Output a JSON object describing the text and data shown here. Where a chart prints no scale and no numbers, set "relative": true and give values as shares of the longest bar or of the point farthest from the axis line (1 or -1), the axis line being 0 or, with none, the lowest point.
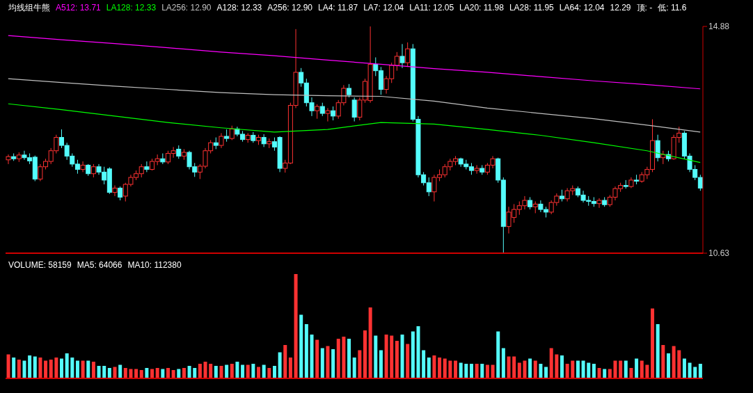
{
  "chart_data": [
    {
      "type": "candlestick",
      "title": "均线组牛熊",
      "legend": "top left",
      "tick_labels": false,
      "annotations": [
        "A128: 12.33",
        "A256: 12.90",
        "LA4: 11.87",
        "LA7: 12.04",
        "LA11: 12.05",
        "LA20: 11.98",
        "LA28: 11.95",
        "LA64: 12.04",
        "12.29",
        "顶: -",
        "低: 11.6"
      ],
      "ylim": [
        10.63,
        14.88
      ],
      "yticks": [
        {
          "value": 14.88,
          "label": "14.88"
        },
        {
          "value": 10.63,
          "label": "10.63"
        }
      ],
      "categories": [
        null,
        null,
        null,
        null,
        null,
        null,
        null,
        null,
        null,
        null,
        null,
        null,
        null,
        null,
        null,
        null,
        null,
        null,
        null,
        null,
        null,
        null,
        null,
        null,
        null,
        null,
        null,
        null,
        null,
        null,
        null,
        null,
        null,
        null,
        null,
        null,
        null,
        null,
        null,
        null,
        null,
        null,
        null,
        null,
        null,
        null,
        null,
        null,
        null,
        null,
        null,
        null,
        null,
        null,
        null,
        null,
        null,
        null,
        null,
        null,
        null,
        null,
        null,
        null,
        null,
        null,
        null,
        null,
        null,
        null,
        null,
        null,
        null,
        null,
        null,
        null,
        null,
        null,
        null,
        null,
        null,
        null,
        null,
        null,
        null,
        null,
        null,
        null,
        null,
        null,
        null,
        null,
        null,
        null,
        null,
        null,
        null,
        null,
        null,
        null,
        null,
        null,
        null,
        null,
        null,
        null,
        null,
        null,
        null,
        null,
        null,
        null,
        null,
        null,
        null,
        null,
        null,
        null,
        null,
        null,
        null,
        null,
        null,
        null,
        null,
        null,
        null,
        null,
        null,
        null,
        null
      ],
      "ohlc": [
        [
          12.38,
          12.48,
          12.3,
          12.44
        ],
        [
          12.44,
          12.5,
          12.36,
          12.4
        ],
        [
          12.4,
          12.52,
          12.34,
          12.47
        ],
        [
          12.47,
          12.55,
          12.38,
          12.42
        ],
        [
          12.42,
          12.5,
          12.3,
          12.36
        ],
        [
          12.43,
          12.46,
          11.98,
          12.02
        ],
        [
          12.02,
          12.3,
          11.98,
          12.25
        ],
        [
          12.25,
          12.4,
          12.2,
          12.35
        ],
        [
          12.35,
          12.6,
          12.3,
          12.55
        ],
        [
          12.55,
          12.85,
          12.5,
          12.8
        ],
        [
          12.8,
          12.95,
          12.6,
          12.65
        ],
        [
          12.65,
          12.7,
          12.38,
          12.45
        ],
        [
          12.45,
          12.5,
          12.25,
          12.3
        ],
        [
          12.3,
          12.38,
          12.12,
          12.2
        ],
        [
          12.2,
          12.35,
          12.15,
          12.28
        ],
        [
          12.28,
          12.3,
          12.08,
          12.12
        ],
        [
          12.12,
          12.3,
          12.05,
          12.25
        ],
        [
          12.25,
          12.3,
          12.1,
          12.15
        ],
        [
          12.15,
          12.25,
          11.92,
          12.0
        ],
        [
          12.21,
          12.24,
          11.74,
          11.77
        ],
        [
          11.77,
          11.9,
          11.7,
          11.85
        ],
        [
          11.85,
          11.88,
          11.62,
          11.68
        ],
        [
          11.7,
          11.95,
          11.6,
          11.92
        ],
        [
          11.92,
          12.1,
          11.88,
          12.05
        ],
        [
          12.05,
          12.18,
          12.0,
          12.12
        ],
        [
          12.12,
          12.3,
          12.05,
          12.25
        ],
        [
          12.25,
          12.35,
          12.15,
          12.2
        ],
        [
          12.2,
          12.4,
          12.18,
          12.35
        ],
        [
          12.35,
          12.48,
          12.28,
          12.4
        ],
        [
          12.4,
          12.5,
          12.3,
          12.34
        ],
        [
          12.34,
          12.55,
          12.3,
          12.5
        ],
        [
          12.5,
          12.62,
          12.42,
          12.55
        ],
        [
          12.58,
          12.65,
          12.4,
          12.45
        ],
        [
          12.45,
          12.58,
          12.38,
          12.52
        ],
        [
          12.52,
          12.55,
          12.2,
          12.25
        ],
        [
          12.25,
          12.32,
          12.06,
          12.15
        ],
        [
          12.15,
          12.3,
          12.02,
          12.26
        ],
        [
          12.26,
          12.6,
          12.22,
          12.55
        ],
        [
          12.55,
          12.75,
          12.5,
          12.7
        ],
        [
          12.7,
          12.8,
          12.58,
          12.65
        ],
        [
          12.65,
          12.88,
          12.6,
          12.82
        ],
        [
          12.82,
          12.95,
          12.72,
          12.78
        ],
        [
          12.78,
          13.02,
          12.75,
          12.96
        ],
        [
          12.96,
          13.0,
          12.82,
          12.86
        ],
        [
          12.86,
          12.92,
          12.72,
          12.76
        ],
        [
          12.76,
          12.88,
          12.7,
          12.84
        ],
        [
          12.84,
          12.9,
          12.7,
          12.74
        ],
        [
          12.74,
          12.85,
          12.66,
          12.8
        ],
        [
          12.8,
          12.86,
          12.62,
          12.68
        ],
        [
          12.68,
          12.78,
          12.6,
          12.72
        ],
        [
          12.72,
          12.8,
          12.55,
          12.62
        ],
        [
          12.8,
          12.82,
          12.15,
          12.22
        ],
        [
          12.22,
          12.38,
          12.14,
          12.32
        ],
        [
          12.32,
          13.45,
          12.3,
          13.4
        ],
        [
          13.4,
          14.83,
          13.35,
          14.02
        ],
        [
          14.02,
          14.1,
          13.75,
          13.82
        ],
        [
          13.82,
          13.9,
          13.38,
          13.45
        ],
        [
          13.45,
          13.55,
          13.2,
          13.3
        ],
        [
          13.3,
          13.42,
          13.15,
          13.38
        ],
        [
          13.38,
          13.45,
          13.2,
          13.25
        ],
        [
          13.25,
          13.35,
          13.1,
          13.3
        ],
        [
          13.3,
          13.38,
          13.12,
          13.2
        ],
        [
          13.2,
          13.5,
          13.15,
          13.45
        ],
        [
          13.45,
          13.78,
          13.4,
          13.72
        ],
        [
          13.72,
          13.8,
          13.55,
          13.6
        ],
        [
          13.5,
          13.55,
          13.1,
          13.18
        ],
        [
          13.18,
          13.55,
          13.12,
          13.5
        ],
        [
          13.5,
          13.9,
          13.45,
          13.85
        ],
        [
          13.49,
          14.88,
          13.45,
          14.17
        ],
        [
          14.17,
          14.3,
          13.95,
          14.05
        ],
        [
          14.05,
          14.12,
          13.6,
          13.7
        ],
        [
          13.7,
          13.95,
          13.62,
          13.9
        ],
        [
          13.9,
          14.2,
          13.82,
          14.15
        ],
        [
          14.15,
          14.4,
          14.05,
          14.32
        ],
        [
          14.32,
          14.55,
          14.1,
          14.2
        ],
        [
          14.2,
          14.58,
          14.12,
          14.46
        ],
        [
          14.46,
          14.55,
          13.1,
          13.14
        ],
        [
          13.14,
          13.2,
          12.05,
          12.1
        ],
        [
          12.1,
          12.15,
          11.9,
          11.95
        ],
        [
          11.95,
          12.05,
          11.7,
          11.78
        ],
        [
          11.78,
          12.1,
          11.6,
          12.05
        ],
        [
          12.05,
          12.2,
          11.98,
          12.1
        ],
        [
          12.1,
          12.3,
          12.05,
          12.25
        ],
        [
          12.25,
          12.4,
          12.18,
          12.35
        ],
        [
          12.35,
          12.45,
          12.28,
          12.4
        ],
        [
          12.4,
          12.42,
          12.25,
          12.3
        ],
        [
          12.3,
          12.38,
          12.2,
          12.25
        ],
        [
          12.25,
          12.32,
          12.1,
          12.18
        ],
        [
          12.18,
          12.28,
          12.12,
          12.22
        ],
        [
          12.22,
          12.28,
          12.1,
          12.15
        ],
        [
          12.15,
          12.32,
          12.1,
          12.28
        ],
        [
          12.28,
          12.45,
          12.22,
          12.4
        ],
        [
          12.4,
          12.42,
          11.95,
          12.0
        ],
        [
          12.0,
          12.05,
          10.63,
          11.13
        ],
        [
          11.13,
          11.5,
          11.0,
          11.4
        ],
        [
          11.3,
          11.55,
          11.2,
          11.45
        ],
        [
          11.45,
          11.6,
          11.35,
          11.52
        ],
        [
          11.52,
          11.7,
          11.45,
          11.62
        ],
        [
          11.62,
          11.68,
          11.45,
          11.5
        ],
        [
          11.5,
          11.6,
          11.38,
          11.55
        ],
        [
          11.55,
          11.62,
          11.4,
          11.45
        ],
        [
          11.45,
          11.5,
          11.3,
          11.4
        ],
        [
          11.4,
          11.62,
          11.36,
          11.58
        ],
        [
          11.58,
          11.75,
          11.52,
          11.7
        ],
        [
          11.7,
          11.82,
          11.6,
          11.65
        ],
        [
          11.65,
          11.85,
          11.6,
          11.8
        ],
        [
          11.8,
          11.9,
          11.72,
          11.84
        ],
        [
          11.84,
          11.88,
          11.68,
          11.72
        ],
        [
          11.72,
          11.8,
          11.58,
          11.62
        ],
        [
          11.62,
          11.7,
          11.52,
          11.6
        ],
        [
          11.6,
          11.68,
          11.5,
          11.56
        ],
        [
          11.56,
          11.66,
          11.48,
          11.62
        ],
        [
          11.62,
          11.68,
          11.5,
          11.54
        ],
        [
          11.54,
          11.72,
          11.5,
          11.68
        ],
        [
          11.68,
          11.88,
          11.62,
          11.84
        ],
        [
          11.84,
          11.95,
          11.78,
          11.9
        ],
        [
          11.9,
          12.0,
          11.84,
          11.88
        ],
        [
          11.88,
          12.05,
          11.85,
          12.0
        ],
        [
          12.0,
          12.1,
          11.92,
          11.98
        ],
        [
          11.98,
          12.15,
          11.95,
          12.1
        ],
        [
          12.1,
          12.25,
          12.02,
          12.2
        ],
        [
          12.2,
          13.14,
          12.15,
          12.74
        ],
        [
          12.74,
          12.85,
          12.35,
          12.42
        ],
        [
          12.42,
          12.55,
          12.3,
          12.48
        ],
        [
          12.48,
          12.55,
          12.35,
          12.4
        ],
        [
          12.4,
          12.85,
          12.38,
          12.8
        ],
        [
          12.8,
          13.0,
          12.7,
          12.88
        ],
        [
          12.88,
          12.92,
          12.4,
          12.45
        ],
        [
          12.45,
          12.5,
          12.15,
          12.2
        ],
        [
          12.2,
          12.28,
          12.0,
          12.05
        ],
        [
          12.05,
          12.1,
          11.8,
          11.85
        ]
      ],
      "colors": [
        "#ff3232",
        "#54fcfc",
        "#ff3232",
        "#54fcfc",
        "#54fcfc",
        "#54fcfc",
        "#ff3232",
        "#ff3232",
        "#ff3232",
        "#ff3232",
        "#54fcfc",
        "#54fcfc",
        "#54fcfc",
        "#54fcfc",
        "#ff3232",
        "#54fcfc",
        "#ff3232",
        "#54fcfc",
        "#54fcfc",
        "#54fcfc",
        "#ff3232",
        "#54fcfc",
        "#ff3232",
        "#ff3232",
        "#ff3232",
        "#ff3232",
        "#54fcfc",
        "#ff3232",
        "#ff3232",
        "#54fcfc",
        "#ff3232",
        "#ff3232",
        "#54fcfc",
        "#ff3232",
        "#54fcfc",
        "#54fcfc",
        "#ff3232",
        "#ff3232",
        "#ff3232",
        "#54fcfc",
        "#ff3232",
        "#54fcfc",
        "#ff3232",
        "#54fcfc",
        "#54fcfc",
        "#ff3232",
        "#54fcfc",
        "#ff3232",
        "#54fcfc",
        "#ff3232",
        "#54fcfc",
        "#54fcfc",
        "#ff3232",
        "#ff3232",
        "#ff3232",
        "#54fcfc",
        "#54fcfc",
        "#54fcfc",
        "#ff3232",
        "#54fcfc",
        "#ff3232",
        "#54fcfc",
        "#ff3232",
        "#ff3232",
        "#54fcfc",
        "#54fcfc",
        "#ff3232",
        "#ff3232",
        "#ff3232",
        "#54fcfc",
        "#54fcfc",
        "#ff3232",
        "#ff3232",
        "#ff3232",
        "#54fcfc",
        "#ff3232",
        "#54fcfc",
        "#54fcfc",
        "#54fcfc",
        "#54fcfc",
        "#ff3232",
        "#ff3232",
        "#ff3232",
        "#ff3232",
        "#ff3232",
        "#54fcfc",
        "#54fcfc",
        "#54fcfc",
        "#ff3232",
        "#54fcfc",
        "#ff3232",
        "#ff3232",
        "#54fcfc",
        "#54fcfc",
        "#ff3232",
        "#ff3232",
        "#ff3232",
        "#ff3232",
        "#54fcfc",
        "#ff3232",
        "#54fcfc",
        "#54fcfc",
        "#ff3232",
        "#ff3232",
        "#54fcfc",
        "#ff3232",
        "#ff3232",
        "#54fcfc",
        "#54fcfc",
        "#54fcfc",
        "#54fcfc",
        "#ff3232",
        "#54fcfc",
        "#ff3232",
        "#ff3232",
        "#ff3232",
        "#54fcfc",
        "#ff3232",
        "#54fcfc",
        "#ff3232",
        "#ff3232",
        "#ff3232",
        "#54fcfc",
        "#ff3232",
        "#54fcfc",
        "#ff3232",
        "#ff3232",
        "#54fcfc",
        "#54fcfc",
        "#54fcfc",
        "#54fcfc"
      ],
      "series": [
        {
          "type": "line",
          "name": "A512: 13.71",
          "color": "#ff00ff",
          "values": [
            14.71,
            null,
            null,
            null,
            null,
            null,
            null,
            null,
            null,
            null,
            14.63,
            null,
            null,
            null,
            null,
            null,
            null,
            null,
            null,
            null,
            14.56,
            null,
            null,
            null,
            null,
            null,
            null,
            null,
            null,
            null,
            14.48,
            null,
            null,
            null,
            null,
            null,
            null,
            null,
            null,
            null,
            14.4,
            null,
            null,
            null,
            null,
            null,
            null,
            null,
            null,
            null,
            14.33,
            null,
            null,
            null,
            null,
            null,
            null,
            null,
            null,
            null,
            14.25,
            null,
            null,
            null,
            null,
            null,
            null,
            null,
            null,
            null,
            14.17,
            null,
            null,
            null,
            null,
            null,
            null,
            null,
            null,
            null,
            14.09,
            null,
            null,
            null,
            null,
            null,
            null,
            null,
            null,
            null,
            14.02,
            null,
            null,
            null,
            null,
            null,
            null,
            null,
            null,
            null,
            13.94,
            null,
            null,
            null,
            null,
            null,
            null,
            null,
            null,
            null,
            13.86,
            null,
            null,
            null,
            null,
            null,
            null,
            null,
            null,
            null,
            13.79,
            null,
            null,
            null,
            null,
            null,
            null,
            null,
            null,
            null,
            13.71
          ]
        },
        {
          "type": "line",
          "name": "LA128: 12.33",
          "color": "#00ff00",
          "values": [
            13.43,
            null,
            null,
            null,
            null,
            null,
            null,
            null,
            null,
            null,
            13.32,
            null,
            null,
            null,
            null,
            null,
            null,
            null,
            null,
            null,
            13.2,
            null,
            null,
            null,
            null,
            null,
            null,
            null,
            null,
            null,
            13.08,
            null,
            null,
            null,
            null,
            null,
            null,
            null,
            null,
            null,
            12.98,
            null,
            null,
            null,
            null,
            null,
            null,
            null,
            null,
            null,
            12.9,
            null,
            null,
            null,
            null,
            null,
            null,
            null,
            null,
            null,
            12.95,
            null,
            null,
            null,
            null,
            null,
            null,
            null,
            null,
            null,
            13.08,
            null,
            null,
            null,
            null,
            null,
            null,
            null,
            null,
            null,
            13.05,
            null,
            null,
            null,
            null,
            null,
            null,
            null,
            null,
            null,
            12.95,
            null,
            null,
            null,
            null,
            null,
            null,
            null,
            null,
            null,
            12.84,
            null,
            null,
            null,
            null,
            null,
            null,
            null,
            null,
            null,
            12.7,
            null,
            null,
            null,
            null,
            null,
            null,
            null,
            null,
            null,
            12.55,
            null,
            null,
            null,
            null,
            null,
            null,
            null,
            null,
            null,
            12.33
          ]
        },
        {
          "type": "line",
          "name": "LA256: 12.90",
          "color": "#c0c0c0",
          "values": [
            13.9,
            null,
            null,
            null,
            null,
            null,
            null,
            null,
            null,
            null,
            13.83,
            null,
            null,
            null,
            null,
            null,
            null,
            null,
            null,
            null,
            13.76,
            null,
            null,
            null,
            null,
            null,
            null,
            null,
            null,
            null,
            13.7,
            null,
            null,
            null,
            null,
            null,
            null,
            null,
            null,
            null,
            13.64,
            null,
            null,
            null,
            null,
            null,
            null,
            null,
            null,
            null,
            13.6,
            null,
            null,
            null,
            null,
            null,
            null,
            null,
            null,
            null,
            13.58,
            null,
            null,
            null,
            null,
            null,
            null,
            null,
            null,
            null,
            13.57,
            null,
            null,
            null,
            null,
            null,
            null,
            null,
            null,
            null,
            13.48,
            null,
            null,
            null,
            null,
            null,
            null,
            null,
            null,
            null,
            13.35,
            null,
            null,
            null,
            null,
            null,
            null,
            null,
            null,
            null,
            13.25,
            null,
            null,
            null,
            null,
            null,
            null,
            null,
            null,
            null,
            13.15,
            null,
            null,
            null,
            null,
            null,
            null,
            null,
            null,
            null,
            13.03,
            null,
            null,
            null,
            null,
            null,
            null,
            null,
            null,
            null,
            12.9
          ]
        }
      ]
    },
    {
      "type": "bar",
      "title": "VOLUME: 58159",
      "annotations": [
        "MA5: 64066",
        "MA10: 112380"
      ],
      "relative": true,
      "tick_labels": false,
      "categories": [
        null,
        null,
        null,
        null,
        null,
        null,
        null,
        null,
        null,
        null,
        null,
        null,
        null,
        null,
        null,
        null,
        null,
        null,
        null,
        null,
        null,
        null,
        null,
        null,
        null,
        null,
        null,
        null,
        null,
        null,
        null,
        null,
        null,
        null,
        null,
        null,
        null,
        null,
        null,
        null,
        null,
        null,
        null,
        null,
        null,
        null,
        null,
        null,
        null,
        null,
        null,
        null,
        null,
        null,
        null,
        null,
        null,
        null,
        null,
        null,
        null,
        null,
        null,
        null,
        null,
        null,
        null,
        null,
        null,
        null,
        null,
        null,
        null,
        null,
        null,
        null,
        null,
        null,
        null,
        null,
        null,
        null,
        null,
        null,
        null,
        null,
        null,
        null,
        null,
        null,
        null,
        null,
        null,
        null,
        null,
        null,
        null,
        null,
        null,
        null,
        null,
        null,
        null,
        null,
        null,
        null,
        null,
        null,
        null,
        null,
        null,
        null,
        null,
        null,
        null,
        null,
        null,
        null,
        null,
        null,
        null,
        null,
        null,
        null,
        null,
        null,
        null,
        null,
        null,
        null,
        null
      ],
      "values": [
        0.23,
        0.2,
        0.18,
        0.17,
        0.22,
        0.21,
        0.2,
        0.17,
        0.18,
        0.2,
        0.19,
        0.24,
        0.2,
        0.17,
        0.17,
        0.17,
        0.16,
        0.12,
        0.12,
        0.1,
        0.11,
        0.13,
        0.1,
        0.09,
        0.09,
        0.08,
        0.1,
        0.09,
        0.1,
        0.09,
        0.1,
        0.08,
        0.09,
        0.1,
        0.12,
        0.1,
        0.14,
        0.16,
        0.14,
        0.12,
        0.12,
        0.13,
        0.14,
        0.16,
        0.13,
        0.13,
        0.14,
        0.11,
        0.13,
        0.1,
        0.12,
        0.25,
        0.32,
        0.2,
        1.0,
        0.61,
        0.52,
        0.42,
        0.37,
        0.29,
        0.31,
        0.28,
        0.38,
        0.4,
        0.38,
        0.2,
        0.27,
        0.46,
        0.68,
        0.41,
        0.27,
        0.42,
        0.41,
        0.36,
        0.42,
        0.33,
        0.45,
        0.5,
        0.27,
        0.2,
        0.22,
        0.2,
        0.19,
        0.17,
        0.17,
        0.15,
        0.14,
        0.14,
        0.14,
        0.14,
        0.13,
        0.13,
        0.45,
        0.29,
        0.21,
        0.21,
        0.15,
        0.17,
        0.19,
        0.17,
        0.14,
        0.11,
        0.29,
        0.23,
        0.22,
        0.14,
        0.17,
        0.17,
        0.17,
        0.15,
        0.14,
        0.1,
        0.09,
        0.09,
        0.17,
        0.17,
        0.17,
        0.1,
        0.19,
        0.17,
        0.13,
        0.67,
        0.52,
        0.32,
        0.24,
        0.31,
        0.27,
        0.19,
        0.15,
        0.11,
        0.14
      ],
      "colors": [
        "#ff3232",
        "#54fcfc",
        "#ff3232",
        "#54fcfc",
        "#54fcfc",
        "#54fcfc",
        "#ff3232",
        "#ff3232",
        "#ff3232",
        "#ff3232",
        "#54fcfc",
        "#54fcfc",
        "#54fcfc",
        "#54fcfc",
        "#ff3232",
        "#54fcfc",
        "#ff3232",
        "#54fcfc",
        "#54fcfc",
        "#54fcfc",
        "#ff3232",
        "#54fcfc",
        "#ff3232",
        "#ff3232",
        "#ff3232",
        "#ff3232",
        "#54fcfc",
        "#ff3232",
        "#ff3232",
        "#54fcfc",
        "#ff3232",
        "#ff3232",
        "#54fcfc",
        "#ff3232",
        "#54fcfc",
        "#54fcfc",
        "#ff3232",
        "#ff3232",
        "#ff3232",
        "#54fcfc",
        "#ff3232",
        "#54fcfc",
        "#ff3232",
        "#54fcfc",
        "#54fcfc",
        "#ff3232",
        "#54fcfc",
        "#ff3232",
        "#54fcfc",
        "#ff3232",
        "#54fcfc",
        "#54fcfc",
        "#ff3232",
        "#ff3232",
        "#ff3232",
        "#54fcfc",
        "#54fcfc",
        "#54fcfc",
        "#ff3232",
        "#54fcfc",
        "#ff3232",
        "#54fcfc",
        "#ff3232",
        "#ff3232",
        "#54fcfc",
        "#54fcfc",
        "#ff3232",
        "#ff3232",
        "#ff3232",
        "#54fcfc",
        "#54fcfc",
        "#ff3232",
        "#ff3232",
        "#ff3232",
        "#54fcfc",
        "#ff3232",
        "#54fcfc",
        "#54fcfc",
        "#54fcfc",
        "#54fcfc",
        "#ff3232",
        "#ff3232",
        "#ff3232",
        "#ff3232",
        "#ff3232",
        "#54fcfc",
        "#54fcfc",
        "#54fcfc",
        "#ff3232",
        "#54fcfc",
        "#ff3232",
        "#ff3232",
        "#54fcfc",
        "#54fcfc",
        "#ff3232",
        "#ff3232",
        "#ff3232",
        "#ff3232",
        "#54fcfc",
        "#ff3232",
        "#54fcfc",
        "#54fcfc",
        "#ff3232",
        "#ff3232",
        "#54fcfc",
        "#ff3232",
        "#ff3232",
        "#54fcfc",
        "#54fcfc",
        "#54fcfc",
        "#54fcfc",
        "#ff3232",
        "#54fcfc",
        "#ff3232",
        "#ff3232",
        "#ff3232",
        "#54fcfc",
        "#ff3232",
        "#54fcfc",
        "#ff3232",
        "#ff3232",
        "#ff3232",
        "#54fcfc",
        "#ff3232",
        "#54fcfc",
        "#ff3232",
        "#ff3232",
        "#54fcfc",
        "#54fcfc",
        "#54fcfc",
        "#54fcfc"
      ]
    }
  ]
}
